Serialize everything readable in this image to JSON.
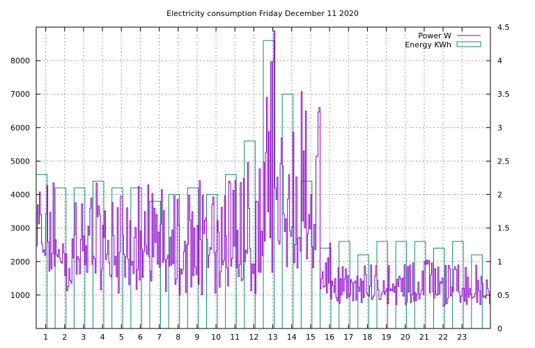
{
  "chart_data": {
    "type": "bar+line",
    "title": "Electricity consumption Friday December 11 2020",
    "xlabel": "",
    "ylabel": "",
    "y2label": "",
    "xlim": [
      0,
      24
    ],
    "ylim": [
      0,
      9000
    ],
    "y2lim": [
      0,
      4.5
    ],
    "grid": true,
    "legend_position": "top-right",
    "x_ticks": [
      "1",
      "2",
      "3",
      "4",
      "5",
      "6",
      "7",
      "8",
      "9",
      "10",
      "11",
      "12",
      "13",
      "14",
      "15",
      "16",
      "17",
      "18",
      "19",
      "20",
      "21",
      "22",
      "23"
    ],
    "y_ticks": [
      "1000",
      "2000",
      "3000",
      "4000",
      "5000",
      "6000",
      "7000",
      "8000"
    ],
    "y2_ticks": [
      "0",
      "0.5",
      "1",
      "1.5",
      "2",
      "2.5",
      "3",
      "3.5",
      "4",
      "4.5"
    ],
    "series": [
      {
        "name": "Energy KWh",
        "axis": "y2",
        "kind": "bar",
        "color": "#0a8a72",
        "categories": [
          0,
          1,
          2,
          3,
          4,
          5,
          6,
          7,
          8,
          9,
          10,
          11,
          12,
          13,
          14,
          15,
          16,
          17,
          18,
          19,
          20,
          21,
          22,
          23
        ],
        "values": [
          2.3,
          2.1,
          2.1,
          2.2,
          2.1,
          2.1,
          1.9,
          2.0,
          2.1,
          2.0,
          2.3,
          2.8,
          4.3,
          3.5,
          2.2,
          1.2,
          1.3,
          1.1,
          1.3,
          1.3,
          1.3,
          1.2,
          1.3,
          1.1
        ]
      },
      {
        "name": "Power W",
        "axis": "y",
        "kind": "line",
        "color": "#8a00c8",
        "description_hourly_ranges": {
          "hours": [
            0,
            1,
            2,
            3,
            4,
            5,
            6,
            7,
            8,
            9,
            10,
            11,
            12,
            13,
            14,
            15,
            16,
            17,
            18,
            19,
            20,
            21,
            22,
            23
          ],
          "low": [
            1300,
            1100,
            1100,
            1150,
            1050,
            1000,
            950,
            950,
            1000,
            1000,
            950,
            1000,
            1500,
            1800,
            1150,
            650,
            700,
            700,
            700,
            700,
            750,
            650,
            700,
            650
          ],
          "high": [
            4500,
            4500,
            4000,
            4500,
            4000,
            4500,
            4500,
            4000,
            4500,
            4000,
            4500,
            5100,
            8900,
            6100,
            7200,
            2600,
            1900,
            2000,
            1900,
            2000,
            2100,
            1900,
            1900,
            1900
          ]
        }
      }
    ]
  }
}
